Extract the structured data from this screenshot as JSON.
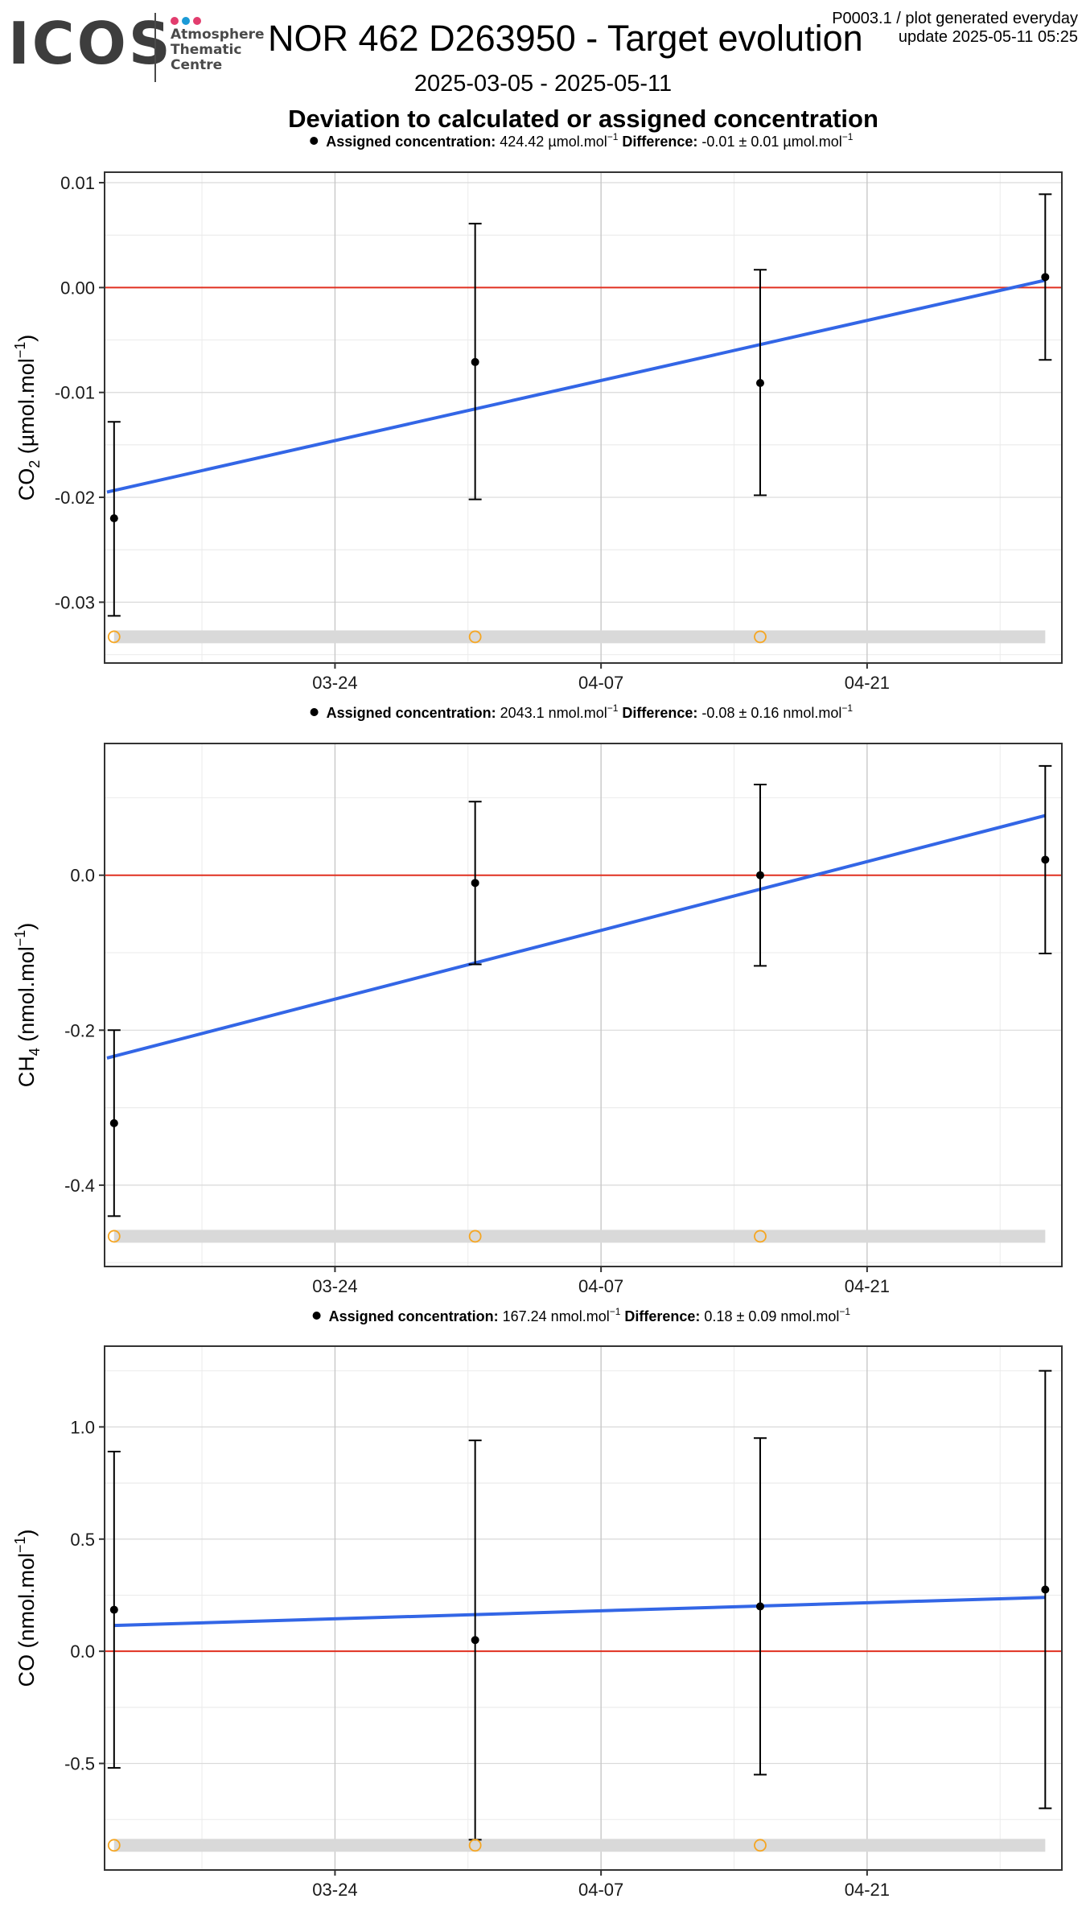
{
  "header": {
    "logo_text": "ICOS",
    "logo_subtitle": [
      "Atmosphere",
      "Thematic",
      "Centre"
    ],
    "logo_dot_colors": [
      "#e23d6e",
      "#1b9ad6",
      "#e23d6e"
    ],
    "title": "NOR 462 D263950 - Target evolution",
    "plot_info_line1": "P0003.1 / plot generated everyday",
    "plot_info_line2": "update  2025-05-11 05:25",
    "date_range": "2025-03-05 - 2025-05-11",
    "subtitle": "Deviation to calculated or assigned concentration"
  },
  "colors": {
    "trend": "#3366e6",
    "zero_line": "#e03020",
    "open_marker": "#f5a623",
    "band": "#d9d9d9",
    "points": "#000000"
  },
  "chart_data": [
    {
      "type": "scatter",
      "legend": {
        "assigned_label": "Assigned concentration:",
        "assigned_value": "424.42 µmol.mol",
        "difference_label": "Difference:",
        "difference_value": "-0.01 ± 0.01 µmol.mol"
      },
      "ylabel_main": "CO",
      "ylabel_sub": "2",
      "ylabel_unit": " (µmol.mol",
      "ylim": [
        -0.0358,
        0.011
      ],
      "yticks": [
        0.01,
        0.0,
        -0.01,
        -0.02,
        -0.03
      ],
      "ytick_labels": [
        "0.01",
        "0.00",
        "-0.01",
        "-0.02",
        "-0.03"
      ],
      "xlim": [
        "2025-03-11T21:00",
        "2025-05-01T06:00"
      ],
      "xticks": [
        "2025-03-24",
        "2025-04-07",
        "2025-04-21"
      ],
      "xtick_labels": [
        "03-24",
        "04-07",
        "04-21"
      ],
      "points": [
        {
          "x": "2025-03-12T09:00",
          "y": -0.022,
          "ymin": -0.0313,
          "ymax": -0.0128
        },
        {
          "x": "2025-03-31T09:00",
          "y": -0.0071,
          "ymin": -0.0202,
          "ymax": 0.0061
        },
        {
          "x": "2025-04-15T09:00",
          "y": -0.0091,
          "ymin": -0.0198,
          "ymax": 0.0017
        },
        {
          "x": "2025-04-30T09:00",
          "y": 0.001,
          "ymin": -0.0069,
          "ymax": 0.0089
        }
      ],
      "trend": {
        "x": [
          "2025-03-12T00:00",
          "2025-04-30T09:00"
        ],
        "y": [
          -0.0195,
          0.0007
        ]
      },
      "open_markers_x": [
        "2025-03-12T09:00",
        "2025-03-31T09:00",
        "2025-04-15T09:00"
      ],
      "band_y": -0.0333
    },
    {
      "type": "scatter",
      "legend": {
        "assigned_label": "Assigned concentration:",
        "assigned_value": "2043.1 nmol.mol",
        "difference_label": "Difference:",
        "difference_value": "-0.08 ± 0.16 nmol.mol"
      },
      "ylabel_main": "CH",
      "ylabel_sub": "4",
      "ylabel_unit": " (nmol.mol",
      "ylim": [
        -0.505,
        0.17
      ],
      "yticks": [
        0.0,
        -0.2,
        -0.4
      ],
      "ytick_labels": [
        "0.0",
        "-0.2",
        "-0.4"
      ],
      "xlim": [
        "2025-03-11T21:00",
        "2025-05-01T06:00"
      ],
      "xticks": [
        "2025-03-24",
        "2025-04-07",
        "2025-04-21"
      ],
      "xtick_labels": [
        "03-24",
        "04-07",
        "04-21"
      ],
      "points": [
        {
          "x": "2025-03-12T09:00",
          "y": -0.32,
          "ymin": -0.44,
          "ymax": -0.2
        },
        {
          "x": "2025-03-31T09:00",
          "y": -0.01,
          "ymin": -0.115,
          "ymax": 0.095
        },
        {
          "x": "2025-04-15T09:00",
          "y": 0.0,
          "ymin": -0.117,
          "ymax": 0.117
        },
        {
          "x": "2025-04-30T09:00",
          "y": 0.02,
          "ymin": -0.101,
          "ymax": 0.141
        }
      ],
      "trend": {
        "x": [
          "2025-03-12T00:00",
          "2025-04-30T09:00"
        ],
        "y": [
          -0.236,
          0.077
        ]
      },
      "open_markers_x": [
        "2025-03-12T09:00",
        "2025-03-31T09:00",
        "2025-04-15T09:00"
      ],
      "band_y": -0.466
    },
    {
      "type": "scatter",
      "legend": {
        "assigned_label": "Assigned concentration:",
        "assigned_value": "167.24 nmol.mol",
        "difference_label": "Difference:",
        "difference_value": "0.18 ± 0.09 nmol.mol"
      },
      "ylabel_main": "CO",
      "ylabel_sub": "",
      "ylabel_unit": " (nmol.mol",
      "ylim": [
        -0.975,
        1.36
      ],
      "yticks": [
        1.0,
        0.5,
        0.0,
        -0.5
      ],
      "ytick_labels": [
        "1.0",
        "0.5",
        "0.0",
        "-0.5"
      ],
      "xlim": [
        "2025-03-11T21:00",
        "2025-05-01T06:00"
      ],
      "xticks": [
        "2025-03-24",
        "2025-04-07",
        "2025-04-21"
      ],
      "xtick_labels": [
        "03-24",
        "04-07",
        "04-21"
      ],
      "points": [
        {
          "x": "2025-03-12T09:00",
          "y": 0.185,
          "ymin": -0.52,
          "ymax": 0.89
        },
        {
          "x": "2025-03-31T09:00",
          "y": 0.05,
          "ymin": -0.84,
          "ymax": 0.94
        },
        {
          "x": "2025-04-15T09:00",
          "y": 0.2,
          "ymin": -0.55,
          "ymax": 0.95
        },
        {
          "x": "2025-04-30T09:00",
          "y": 0.275,
          "ymin": -0.7,
          "ymax": 1.25
        }
      ],
      "trend": {
        "x": [
          "2025-03-12T09:00",
          "2025-04-30T09:00"
        ],
        "y": [
          0.115,
          0.24
        ]
      },
      "open_markers_x": [
        "2025-03-12T09:00",
        "2025-03-31T09:00",
        "2025-04-15T09:00"
      ],
      "band_y": -0.865
    }
  ]
}
